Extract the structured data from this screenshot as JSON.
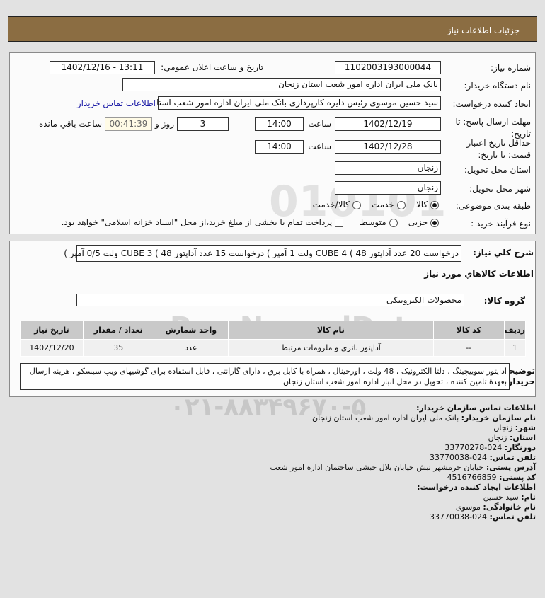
{
  "header": {
    "title": "جزئیات اطلاعات نیاز"
  },
  "form": {
    "need_number_label": "شماره نیاز:",
    "need_number": "1102003193000044",
    "announce_label": "تاريخ و ساعت اعلان عمومي:",
    "announce_value": "1402/12/16 - 13:11",
    "buyer_label": "نام دستگاه خریدار:",
    "buyer_value": "بانک ملی ایران اداره امور شعب استان زنجان",
    "creator_label": "ایجاد کننده درخواست:",
    "creator_value": "سید حسین موسوی رئیس دایره کارپردازی بانک ملی ایران اداره امور شعب استا",
    "contact_link": "اطلاعات تماس خریدار",
    "deadline_label": "مهلت ارسال پاسخ: تا تاریخ:",
    "deadline_date": "1402/12/19",
    "time_label": "ساعت",
    "deadline_time": "14:00",
    "days": "3",
    "days_label": "روز و",
    "remaining": "00:41:39",
    "remaining_label": "ساعت باقي مانده",
    "validity_label": "حداقل تاریخ اعتبار قیمت: تا تاریخ:",
    "validity_date": "1402/12/28",
    "validity_time": "14:00",
    "province_label": "استان محل تحویل:",
    "province": "زنجان",
    "city_label": "شهر محل تحویل:",
    "city": "زنجان",
    "category_label": "طبقه بندی موضوعی:",
    "category_options": [
      "کالا",
      "خدمت",
      "کالا/خدمت"
    ],
    "category_selected": "کالا",
    "process_label": "نوع فرآیند خرید :",
    "process_options": [
      "جزیی",
      "متوسط"
    ],
    "process_selected": "جزیی",
    "payment_note": "پرداخت تمام یا بخشی از مبلغ خرید،از محل \"اسناد خزانه اسلامی\" خواهد بود.",
    "payment_checked": false
  },
  "details": {
    "summary_label": "شرح كلي نياز:",
    "summary": "درخواست 20 عدد آداپتور 48 ) CUBE 4 ولت 1 آمپر ) درخواست 15 عدد آداپتور 48 ) CUBE 3 ولت 0/5 آمپر )",
    "goods_title": "اطلاعات كالاهاي مورد نياز",
    "group_label": "گروه کالا:",
    "group_value": "محصولات الکترونیکی",
    "table": {
      "headers": [
        "ردیف",
        "کد کالا",
        "نام کالا",
        "واحد شمارش",
        "تعداد / مقدار",
        "تاریخ نیاز"
      ],
      "rows": [
        [
          "1",
          "--",
          "آداپتور باتری و ملزومات مرتبط",
          "عدد",
          "35",
          "1402/12/20"
        ]
      ]
    },
    "desc_label": "توضیحات خریدار:",
    "desc": "آداپتور سوییچینگ ، دلتا الکترونیک ، 48 ولت ، اورجینال ، همراه با کابل برق ، دارای گارانتی ، قابل استفاده برای گوشیهای ویپ سیسکو ، هزینه ارسال بعهدۀ تامین کننده ، تحویل در محل انبار اداره امور شعب استان زنجان"
  },
  "contact": {
    "title": "اطلاعات تماس سازمان خریدار:",
    "fields": [
      {
        "label": "نام سازمان خریدار:",
        "value": "بانک ملی ایران اداره امور شعب استان زنجان"
      },
      {
        "label": "شهر:",
        "value": "زنجان"
      },
      {
        "label": "استان:",
        "value": "زنجان"
      },
      {
        "label": "دورنگار:",
        "value": "024-33770278"
      },
      {
        "label": "تلفن تماس:",
        "value": "024-33770038"
      },
      {
        "label": "آدرس پستی:",
        "value": "خیابان خرمشهر نبش خیابان بلال حبشی ساختمان اداره امور شعب"
      },
      {
        "label": "کد پستی:",
        "value": "4516766859"
      }
    ],
    "creator_title": "اطلاعات ایجاد کننده درخواست:",
    "creator_fields": [
      {
        "label": "نام:",
        "value": "سید حسین"
      },
      {
        "label": "نام خانوادگی:",
        "value": "موسوی"
      },
      {
        "label": "تلفن تماس:",
        "value": "024-33770038"
      }
    ]
  },
  "watermark": {
    "text": "ParsNamadData",
    "phone": "۰۲۱-۸۸۳۴۹۶۷۰-۵"
  },
  "colors": {
    "header": "#8b6d42",
    "link": "#1a1aa6",
    "remaining_bg": "#fffbe6"
  }
}
